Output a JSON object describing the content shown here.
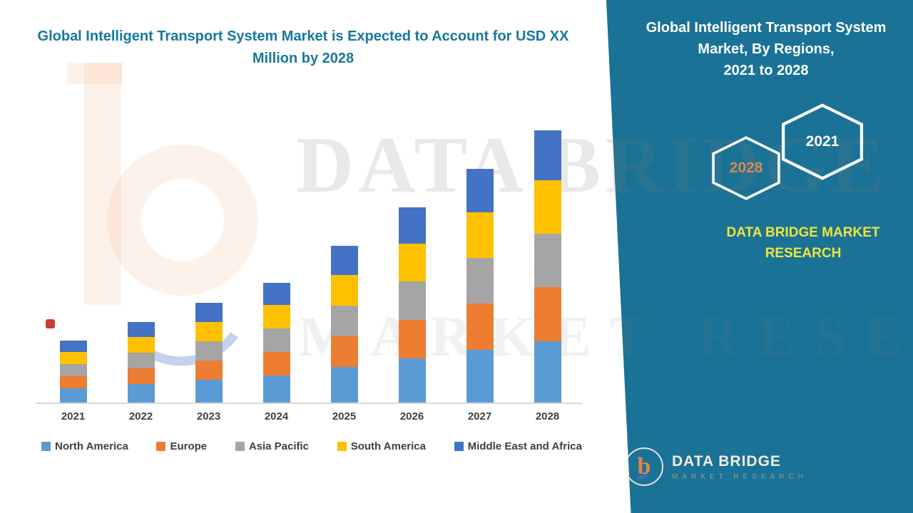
{
  "left_panel": {
    "title": "Global Intelligent Transport System Market is Expected to Account for USD XX Million by 2028"
  },
  "right_panel": {
    "title_line1": "Global Intelligent Transport System",
    "title_line2": "Market,  By Regions,",
    "title_line3": "2021 to 2028",
    "badge_back": "2028",
    "badge_front": "2021",
    "brand_line1": "DATA BRIDGE MARKET",
    "brand_line2": "RESEARCH",
    "background_color": "#1A7296",
    "brand_text_color": "#EDE53C",
    "logo": {
      "glyph": "b",
      "name": "DATA BRIDGE",
      "tagline": "MARKET RESEARCH"
    }
  },
  "watermark": {
    "line1": "DATA BRIDGE",
    "line2": "MARKET RESEARCH"
  },
  "chart_data": {
    "type": "bar",
    "stacked": true,
    "title": "Global Intelligent Transport System Market is Expected to Account for USD XX Million by 2028",
    "xlabel": "",
    "ylabel": "",
    "value_axis_visible": false,
    "grid": false,
    "legend_position": "bottom",
    "units": "USD XX Million (value axis not shown; values below are relative heights estimated from the figure)",
    "categories": [
      "2021",
      "2022",
      "2023",
      "2024",
      "2025",
      "2026",
      "2027",
      "2028"
    ],
    "series": [
      {
        "name": "North America",
        "color": "#5B9BD5",
        "values": [
          20,
          26,
          32,
          38,
          50,
          62,
          74,
          86
        ]
      },
      {
        "name": "Europe",
        "color": "#ED7D31",
        "values": [
          17,
          22,
          27,
          33,
          43,
          54,
          65,
          76
        ]
      },
      {
        "name": "Asia Pacific",
        "color": "#A5A5A5",
        "values": [
          17,
          22,
          27,
          33,
          43,
          54,
          64,
          75
        ]
      },
      {
        "name": "South America",
        "color": "#FFC000",
        "values": [
          17,
          22,
          27,
          33,
          43,
          53,
          64,
          75
        ]
      },
      {
        "name": "Middle East and Africa",
        "color": "#4472C4",
        "values": [
          16,
          21,
          27,
          31,
          41,
          51,
          61,
          70
        ]
      }
    ],
    "totals": [
      87,
      113,
      140,
      168,
      220,
      274,
      328,
      382
    ]
  }
}
